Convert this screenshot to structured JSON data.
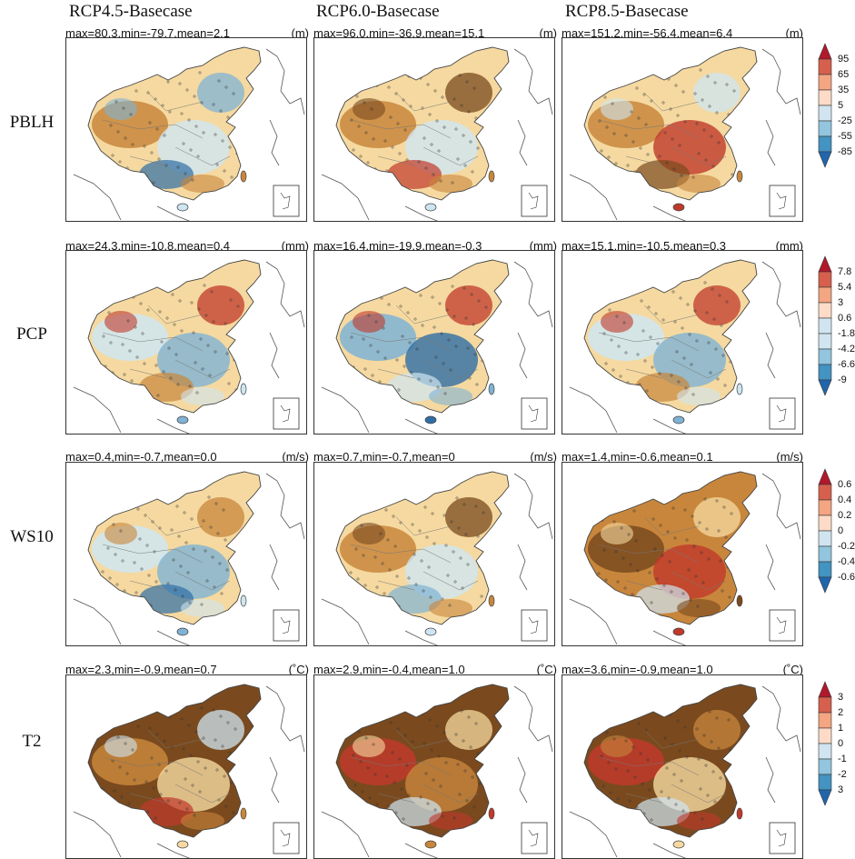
{
  "columns": [
    "RCP4.5-Basecase",
    "RCP6.0-Basecase",
    "RCP8.5-Basecase"
  ],
  "rows": [
    {
      "label": "PBLH",
      "unit": "(m)",
      "stats": [
        "max=80.3,min=-79.7,mean=2.1",
        "max=96.0,min=-36.9,mean=15.1",
        "max=151.2,min=-56.4,mean=6.4"
      ],
      "ticks": [
        "95",
        "65",
        "35",
        "5",
        "-25",
        "-55",
        "-85"
      ]
    },
    {
      "label": "PCP",
      "unit": "(mm)",
      "stats": [
        "max=24.3,min=-10.8,mean=0.4",
        "max=16.4,min=-19.9,mean=-0.3",
        "max=15.1,min=-10.5,mean=0.3"
      ],
      "ticks": [
        "7.8",
        "5.4",
        "3",
        "0.6",
        "-1.8",
        "-4.2",
        "-6.6",
        "-9"
      ]
    },
    {
      "label": "WS10",
      "unit": "(m/s)",
      "stats": [
        "max=0.4,min=-0.7,mean=0.0",
        "max=0.7,min=-0.7,mean=0",
        "max=1.4,min=-0.6,mean=0.1"
      ],
      "ticks": [
        "0.6",
        "0.4",
        "0.2",
        "0",
        "-0.2",
        "-0.4",
        "-0.6"
      ]
    },
    {
      "label": "T2",
      "unit": "(˚C)",
      "stats": [
        "max=2.3,min=-0.9,mean=0.7",
        "max=2.9,min=-0.4,mean=1.0",
        "max=3.6,min=-0.9,mean=1.0"
      ],
      "ticks": [
        "3",
        "2",
        "1",
        "0",
        "-1",
        "-2",
        "3"
      ]
    }
  ],
  "colors": {
    "colorbar": [
      "#b2182b",
      "#d6604d",
      "#f4a582",
      "#fddbc7",
      "#d1e5f0",
      "#92c5de",
      "#4393c3",
      "#2166ac"
    ],
    "warm_dark": "#7a4a1e",
    "warm_mid": "#c8863c",
    "warm_light": "#f5d9a0",
    "cool_light": "#cfe6f2",
    "cool_mid": "#7fb3d5",
    "cool_dark": "#2f6ea5",
    "red_strong": "#c0392b"
  }
}
